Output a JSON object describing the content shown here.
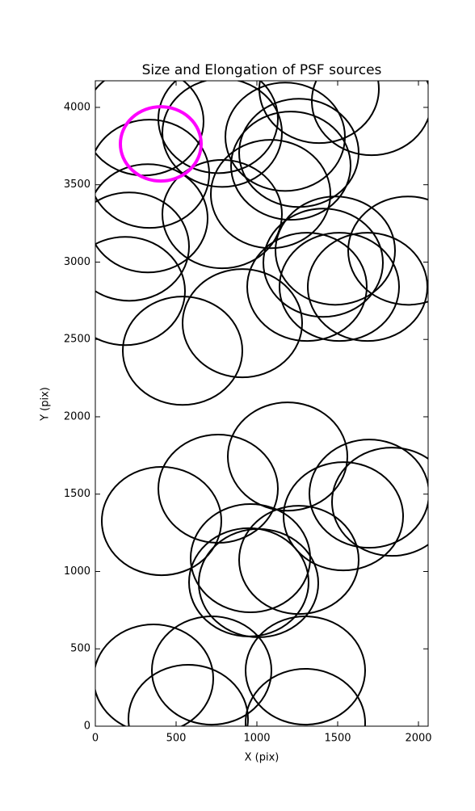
{
  "chart_data": {
    "type": "ellipse",
    "title": "Size and Elongation of PSF sources",
    "x_label": "X (pix)",
    "y_label": "Y (pix)",
    "xlim": [
      0,
      2060
    ],
    "ylim": [
      0,
      4172
    ],
    "xticks": [
      0,
      500,
      1000,
      1500,
      2000
    ],
    "yticks": [
      0,
      500,
      1000,
      1500,
      2000,
      2500,
      3000,
      3500,
      4000
    ],
    "series": [
      {
        "color": "#000000",
        "x": [
          300,
          760,
          785,
          1175,
          1385,
          1710,
          335,
          325,
          210,
          185,
          785,
          1085,
          1210,
          1260,
          1410,
          1485,
          1310,
          1510,
          1685,
          1935,
          910,
          540,
          1190,
          760,
          410,
          1535,
          1695,
          1835,
          960,
          950,
          1260,
          1010,
          360,
          720,
          575,
          1300,
          1300
        ],
        "y": [
          3910,
          3925,
          3836,
          3810,
          4119,
          4041,
          3571,
          3283,
          3100,
          2813,
          3310,
          3440,
          3623,
          3706,
          2996,
          3074,
          2840,
          2840,
          2840,
          3074,
          2605,
          2427,
          1743,
          1535,
          1326,
          1357,
          1503,
          1451,
          1086,
          930,
          1075,
          925,
          308,
          360,
          47,
          360,
          21
        ],
        "width": [
          740,
          740,
          740,
          740,
          740,
          740,
          740,
          740,
          740,
          740,
          740,
          740,
          740,
          740,
          740,
          740,
          740,
          740,
          740,
          740,
          740,
          740,
          740,
          740,
          740,
          740,
          740,
          740,
          740,
          740,
          740,
          740,
          740,
          740,
          740,
          740,
          740
        ],
        "height": [
          700,
          700,
          700,
          700,
          700,
          700,
          700,
          700,
          700,
          700,
          700,
          700,
          700,
          700,
          700,
          700,
          700,
          700,
          700,
          700,
          700,
          700,
          700,
          700,
          700,
          700,
          700,
          700,
          700,
          700,
          700,
          700,
          700,
          700,
          700,
          700,
          700
        ]
      },
      {
        "color": "#ff00ff",
        "x": [
          405
        ],
        "y": [
          3764
        ],
        "width": [
          500
        ],
        "height": [
          480
        ]
      }
    ]
  }
}
